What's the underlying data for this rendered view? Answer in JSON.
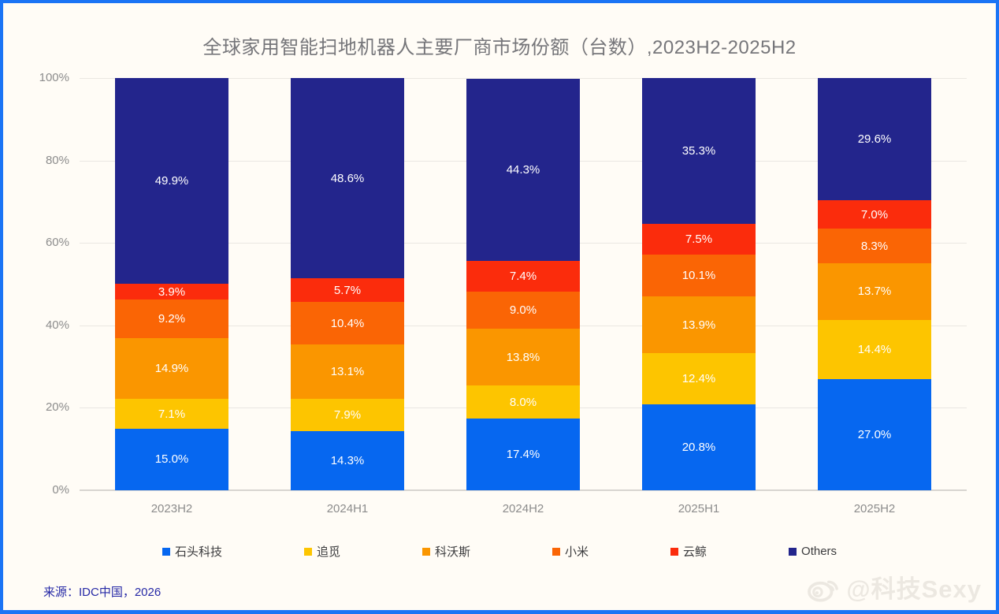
{
  "page": {
    "title": "全球家用智能扫地机器人主要厂商市场份额（台数）,2023H2-2025H2",
    "source": "来源：IDC中国，2026",
    "watermark_text": "@科技Sexy",
    "watermark_icon": "weibo-icon",
    "background_color": "#FFFCF6",
    "border_color": "#1B74F5",
    "title_color": "#76767A",
    "source_color": "#2629A6"
  },
  "chart_data": {
    "type": "bar",
    "stacked": true,
    "unit": "%",
    "title": "全球家用智能扫地机器人主要厂商市场份额（台数）,2023H2-2025H2",
    "categories": [
      "2023H2",
      "2024H1",
      "2024H2",
      "2025H1",
      "2025H2"
    ],
    "series": [
      {
        "name": "石头科技",
        "color": "#0667F0",
        "values": [
          15.0,
          14.3,
          17.4,
          20.8,
          27.0
        ]
      },
      {
        "name": "追觅",
        "color": "#FDC500",
        "values": [
          7.1,
          7.9,
          8.0,
          12.4,
          14.4
        ]
      },
      {
        "name": "科沃斯",
        "color": "#FA9600",
        "values": [
          14.9,
          13.1,
          13.8,
          13.9,
          13.7
        ]
      },
      {
        "name": "小米",
        "color": "#FA6505",
        "values": [
          9.2,
          10.4,
          9.0,
          10.1,
          8.3
        ]
      },
      {
        "name": "云鲸",
        "color": "#FB2C0C",
        "values": [
          3.9,
          5.7,
          7.4,
          7.5,
          7.0
        ]
      },
      {
        "name": "Others",
        "color": "#23258C",
        "values": [
          49.9,
          48.6,
          44.3,
          35.3,
          29.6
        ]
      }
    ],
    "y_ticks": [
      "0%",
      "20%",
      "40%",
      "60%",
      "80%",
      "100%"
    ],
    "ylim": [
      0,
      100
    ],
    "grid": true,
    "legend_position": "bottom",
    "value_labels": "inside, white, one decimal + %"
  }
}
